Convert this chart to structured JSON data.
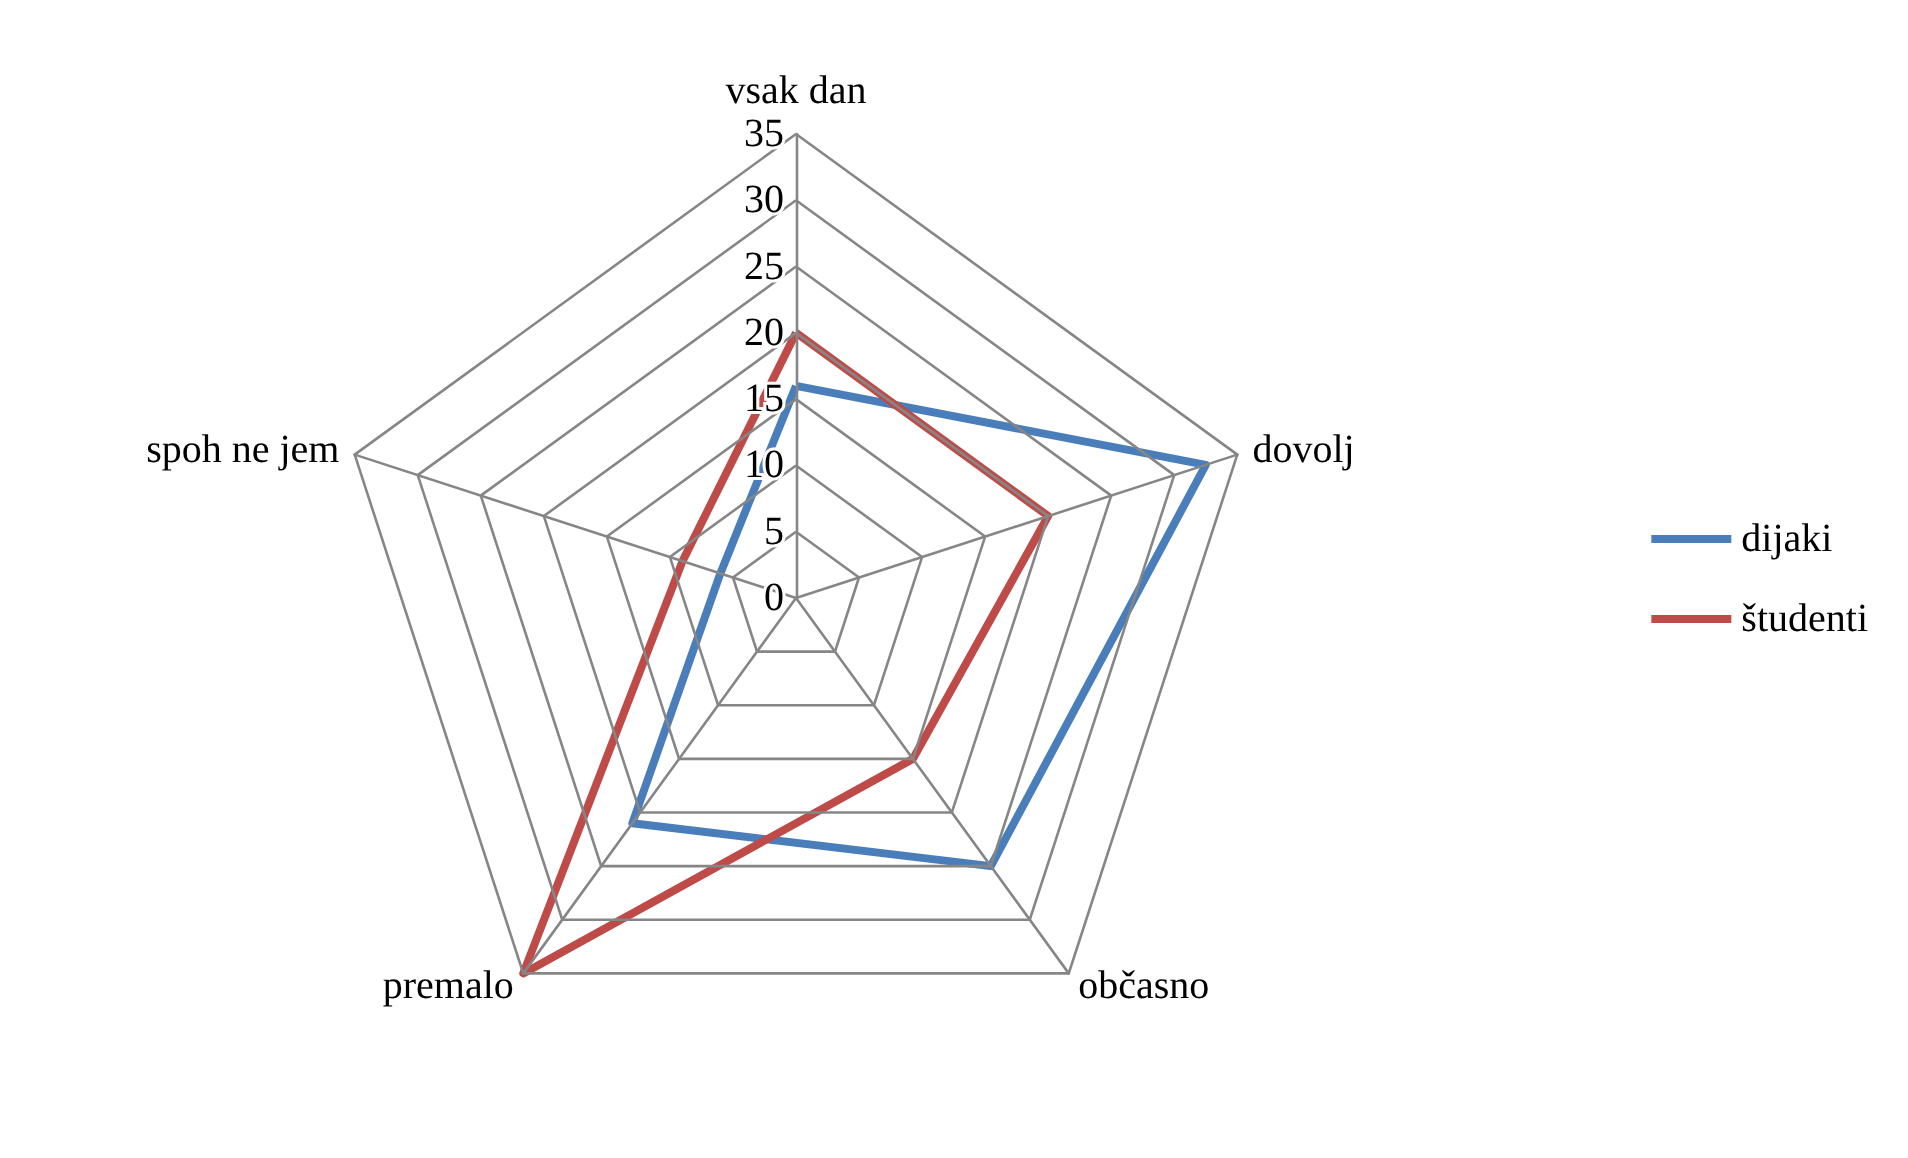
{
  "chart_data": {
    "type": "radar",
    "categories": [
      "vsak dan",
      "dovolj",
      "občasno",
      "premalo",
      "spoh ne jem"
    ],
    "series": [
      {
        "name": "dijaki",
        "color": "#4a7ebb",
        "values": [
          16,
          32.5,
          25,
          21,
          6
        ]
      },
      {
        "name": "študenti",
        "color": "#be4b48",
        "values": [
          20,
          20,
          15,
          35,
          9
        ]
      }
    ],
    "ylim": [
      0,
      35
    ],
    "yticks": [
      0,
      5,
      10,
      15,
      20,
      25,
      30,
      35
    ],
    "legend": "right",
    "marker": "none",
    "line_style": "solid"
  }
}
